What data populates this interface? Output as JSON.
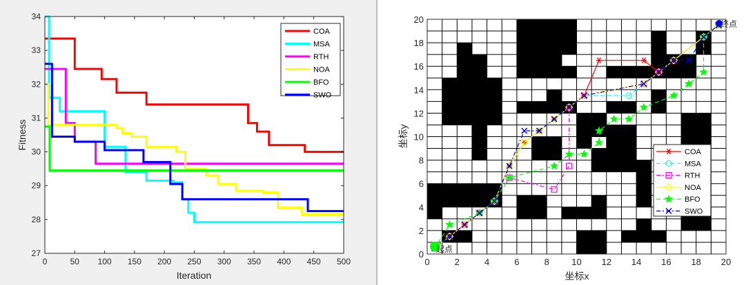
{
  "chart_data": [
    {
      "type": "line",
      "xlabel": "Iteration",
      "ylabel": "Fitness",
      "xlim": [
        0,
        500
      ],
      "ylim": [
        27,
        34
      ],
      "xticks": [
        0,
        50,
        100,
        150,
        200,
        250,
        300,
        350,
        400,
        450,
        500
      ],
      "yticks": [
        27,
        28,
        29,
        30,
        31,
        32,
        33,
        34
      ],
      "legend_position": "top-right",
      "series": [
        {
          "name": "COA",
          "color": "#ff0000",
          "steps": [
            [
              0,
              33.35
            ],
            [
              50,
              32.45
            ],
            [
              95,
              32.15
            ],
            [
              120,
              31.75
            ],
            [
              170,
              31.4
            ],
            [
              340,
              30.85
            ],
            [
              355,
              30.6
            ],
            [
              375,
              30.2
            ],
            [
              435,
              30.0
            ],
            [
              500,
              30.0
            ]
          ]
        },
        {
          "name": "MSA",
          "color": "#00ffff",
          "steps": [
            [
              0,
              34.0
            ],
            [
              7,
              31.6
            ],
            [
              25,
              31.2
            ],
            [
              100,
              30.15
            ],
            [
              135,
              29.4
            ],
            [
              170,
              29.15
            ],
            [
              215,
              29.1
            ],
            [
              230,
              28.6
            ],
            [
              240,
              28.2
            ],
            [
              250,
              27.92
            ],
            [
              500,
              27.92
            ]
          ]
        },
        {
          "name": "RTH",
          "color": "#ff00ff",
          "steps": [
            [
              0,
              32.45
            ],
            [
              35,
              30.85
            ],
            [
              50,
              30.3
            ],
            [
              85,
              29.65
            ],
            [
              500,
              29.65
            ]
          ]
        },
        {
          "name": "NOA",
          "color": "#ffff00",
          "steps": [
            [
              0,
              32.0
            ],
            [
              6,
              30.8
            ],
            [
              120,
              30.7
            ],
            [
              130,
              30.55
            ],
            [
              145,
              30.45
            ],
            [
              170,
              30.15
            ],
            [
              220,
              30.0
            ],
            [
              235,
              29.5
            ],
            [
              270,
              29.3
            ],
            [
              290,
              29.05
            ],
            [
              320,
              28.85
            ],
            [
              365,
              28.8
            ],
            [
              390,
              28.35
            ],
            [
              430,
              28.15
            ],
            [
              500,
              28.15
            ]
          ]
        },
        {
          "name": "BFO",
          "color": "#00ff00",
          "steps": [
            [
              0,
              30.75
            ],
            [
              8,
              29.45
            ],
            [
              500,
              29.45
            ]
          ]
        },
        {
          "name": "SWO",
          "color": "#0000ff",
          "steps": [
            [
              0,
              32.6
            ],
            [
              12,
              30.45
            ],
            [
              50,
              30.3
            ],
            [
              100,
              30.05
            ],
            [
              165,
              29.7
            ],
            [
              210,
              29.05
            ],
            [
              230,
              28.6
            ],
            [
              440,
              28.5
            ],
            [
              440,
              28.25
            ],
            [
              500,
              28.25
            ]
          ]
        }
      ]
    },
    {
      "type": "scatter",
      "xlabel": "坐标x",
      "ylabel": "坐标y",
      "xlim": [
        0,
        20
      ],
      "ylim": [
        0,
        20
      ],
      "xticks": [
        0,
        2,
        4,
        6,
        8,
        10,
        12,
        14,
        16,
        18,
        20
      ],
      "yticks": [
        0,
        2,
        4,
        6,
        8,
        10,
        12,
        14,
        16,
        18,
        20
      ],
      "grid": true,
      "legend_position": "bottom-right",
      "start_label": "起点",
      "end_label": "终点",
      "start": [
        0.5,
        0.5
      ],
      "end": [
        19.5,
        19.5
      ],
      "obstacles": [
        [
          1,
          1
        ],
        [
          2,
          1
        ],
        [
          10,
          0
        ],
        [
          11,
          0
        ],
        [
          10,
          1
        ],
        [
          11,
          1
        ],
        [
          13,
          1
        ],
        [
          14,
          1
        ],
        [
          15,
          1
        ],
        [
          14,
          2
        ],
        [
          0,
          3
        ],
        [
          0,
          4
        ],
        [
          1,
          4
        ],
        [
          2,
          4
        ],
        [
          3,
          4
        ],
        [
          4,
          4
        ],
        [
          0,
          5
        ],
        [
          1,
          5
        ],
        [
          2,
          5
        ],
        [
          3,
          5
        ],
        [
          4,
          5
        ],
        [
          6,
          3
        ],
        [
          7,
          3
        ],
        [
          6,
          4
        ],
        [
          7,
          4
        ],
        [
          9,
          3
        ],
        [
          10,
          3
        ],
        [
          11,
          3
        ],
        [
          11,
          4
        ],
        [
          17,
          2
        ],
        [
          18,
          2
        ],
        [
          17,
          3
        ],
        [
          18,
          3
        ],
        [
          7,
          8
        ],
        [
          8,
          8
        ],
        [
          7,
          9
        ],
        [
          8,
          9
        ],
        [
          11,
          7
        ],
        [
          12,
          7
        ],
        [
          13,
          7
        ],
        [
          11,
          8
        ],
        [
          12,
          8
        ],
        [
          13,
          8
        ],
        [
          12,
          9
        ],
        [
          13,
          9
        ],
        [
          12,
          10
        ],
        [
          13,
          10
        ],
        [
          14,
          4
        ],
        [
          14,
          5
        ],
        [
          14,
          6
        ],
        [
          14,
          7
        ],
        [
          10,
          9
        ],
        [
          10,
          10
        ],
        [
          10,
          11
        ],
        [
          11,
          10
        ],
        [
          3,
          8
        ],
        [
          3,
          9
        ],
        [
          3,
          10
        ],
        [
          1,
          11
        ],
        [
          2,
          11
        ],
        [
          3,
          11
        ],
        [
          4,
          11
        ],
        [
          1,
          12
        ],
        [
          2,
          12
        ],
        [
          3,
          12
        ],
        [
          4,
          12
        ],
        [
          1,
          13
        ],
        [
          2,
          13
        ],
        [
          3,
          13
        ],
        [
          4,
          13
        ],
        [
          1,
          14
        ],
        [
          2,
          14
        ],
        [
          3,
          14
        ],
        [
          4,
          14
        ],
        [
          2,
          15
        ],
        [
          3,
          15
        ],
        [
          2,
          16
        ],
        [
          3,
          16
        ],
        [
          2,
          17
        ],
        [
          6,
          12
        ],
        [
          7,
          12
        ],
        [
          8,
          12
        ],
        [
          8,
          13
        ],
        [
          9,
          12
        ],
        [
          11,
          11
        ],
        [
          12,
          12
        ],
        [
          13,
          12
        ],
        [
          6,
          15
        ],
        [
          7,
          15
        ],
        [
          8,
          15
        ],
        [
          9,
          15
        ],
        [
          6,
          16
        ],
        [
          6,
          17
        ],
        [
          6,
          18
        ],
        [
          6,
          19
        ],
        [
          7,
          16
        ],
        [
          7,
          17
        ],
        [
          7,
          18
        ],
        [
          7,
          19
        ],
        [
          8,
          16
        ],
        [
          8,
          17
        ],
        [
          8,
          18
        ],
        [
          8,
          19
        ],
        [
          9,
          17
        ],
        [
          9,
          18
        ],
        [
          9,
          19
        ],
        [
          12,
          15
        ],
        [
          13,
          15
        ],
        [
          14,
          15
        ],
        [
          15,
          15
        ],
        [
          16,
          15
        ],
        [
          17,
          15
        ],
        [
          15,
          16
        ],
        [
          16,
          16
        ],
        [
          17,
          16
        ],
        [
          15,
          17
        ],
        [
          15,
          18
        ],
        [
          18,
          17
        ],
        [
          18,
          18
        ],
        [
          17,
          9
        ],
        [
          18,
          9
        ],
        [
          17,
          10
        ],
        [
          18,
          10
        ],
        [
          17,
          11
        ],
        [
          18,
          11
        ],
        [
          15,
          12
        ],
        [
          15,
          13
        ]
      ],
      "series": [
        {
          "name": "COA",
          "color": "#ff0000",
          "marker": "star6",
          "dash": "",
          "points": [
            [
              0.5,
              0.5
            ],
            [
              1.5,
              1.5
            ],
            [
              2.5,
              2.5
            ],
            [
              3.5,
              3.5
            ],
            [
              4.5,
              4.5
            ],
            [
              5.5,
              7.5
            ],
            [
              6.5,
              9.5
            ],
            [
              7.5,
              10.5
            ],
            [
              8.5,
              11.5
            ],
            [
              9.5,
              12.5
            ],
            [
              10.5,
              13.5
            ],
            [
              11.5,
              16.5
            ],
            [
              14.5,
              16.5
            ],
            [
              15.5,
              15.5
            ],
            [
              16.5,
              16.5
            ],
            [
              18.5,
              18.5
            ],
            [
              19.5,
              19.5
            ]
          ]
        },
        {
          "name": "MSA",
          "color": "#00ffff",
          "marker": "circle",
          "dash": "6,4",
          "points": [
            [
              0.5,
              0.5
            ],
            [
              1.5,
              1.5
            ],
            [
              2.5,
              2.5
            ],
            [
              3.5,
              3.5
            ],
            [
              4.5,
              4.5
            ],
            [
              5.5,
              7.5
            ],
            [
              6.5,
              9.5
            ],
            [
              7.5,
              10.5
            ],
            [
              8.5,
              11.5
            ],
            [
              9.5,
              12.5
            ],
            [
              10.5,
              13.5
            ],
            [
              13.5,
              13.5
            ],
            [
              14.5,
              14.5
            ],
            [
              15.5,
              15.5
            ],
            [
              16.5,
              16.5
            ],
            [
              18.5,
              18.5
            ],
            [
              19.5,
              19.5
            ]
          ]
        },
        {
          "name": "RTH",
          "color": "#ff00ff",
          "marker": "square",
          "dash": "6,3,2,3",
          "points": [
            [
              0.5,
              0.5
            ],
            [
              1.5,
              1.5
            ],
            [
              2.5,
              2.5
            ],
            [
              3.5,
              3.5
            ],
            [
              4.5,
              4.5
            ],
            [
              5.5,
              6.5
            ],
            [
              8.5,
              5.5
            ],
            [
              9.5,
              7.5
            ],
            [
              9.5,
              12.5
            ],
            [
              10.5,
              13.5
            ],
            [
              14.5,
              14.5
            ],
            [
              15.5,
              15.5
            ],
            [
              16.5,
              16.5
            ],
            [
              18.5,
              18.5
            ],
            [
              19.5,
              19.5
            ]
          ]
        },
        {
          "name": "NOA",
          "color": "#ffff00",
          "marker": "diamond",
          "dash": "",
          "points": [
            [
              0.5,
              0.5
            ],
            [
              1.5,
              1.5
            ],
            [
              2.5,
              2.5
            ],
            [
              3.5,
              3.5
            ],
            [
              4.5,
              4.5
            ],
            [
              5.5,
              7.5
            ],
            [
              6.5,
              9.5
            ],
            [
              7.5,
              10.5
            ],
            [
              8.5,
              11.5
            ],
            [
              9.5,
              12.5
            ],
            [
              10.5,
              13.5
            ],
            [
              14.5,
              14.5
            ],
            [
              15.5,
              15.5
            ],
            [
              16.5,
              16.5
            ],
            [
              18.5,
              18.5
            ],
            [
              19.5,
              19.5
            ]
          ]
        },
        {
          "name": "BFO",
          "color": "#00ff00",
          "marker": "pentagram",
          "dash": "6,4",
          "points": [
            [
              0.5,
              0.5
            ],
            [
              1.5,
              2.5
            ],
            [
              3.5,
              3.5
            ],
            [
              4.5,
              4.5
            ],
            [
              5.5,
              6.5
            ],
            [
              8.5,
              7.5
            ],
            [
              9.5,
              8.5
            ],
            [
              10.5,
              8.5
            ],
            [
              11.5,
              9.5
            ],
            [
              11.5,
              10.5
            ],
            [
              12.5,
              11.5
            ],
            [
              13.5,
              11.5
            ],
            [
              14.5,
              12.5
            ],
            [
              16.5,
              13.5
            ],
            [
              17.5,
              14.5
            ],
            [
              18.5,
              15.5
            ],
            [
              18.5,
              18.5
            ],
            [
              19.5,
              19.5
            ]
          ]
        },
        {
          "name": "SWO",
          "color": "#0000cc",
          "marker": "x",
          "dash": "6,3,2,3",
          "points": [
            [
              0.5,
              0.5
            ],
            [
              1.5,
              1.5
            ],
            [
              2.5,
              2.5
            ],
            [
              3.5,
              3.5
            ],
            [
              4.5,
              4.5
            ],
            [
              5.5,
              7.5
            ],
            [
              6.5,
              10.5
            ],
            [
              7.5,
              10.5
            ],
            [
              8.5,
              11.5
            ],
            [
              9.5,
              12.5
            ],
            [
              10.5,
              13.5
            ],
            [
              14.5,
              14.5
            ],
            [
              15.5,
              15.5
            ],
            [
              16.5,
              16.5
            ],
            [
              17.5,
              16.5
            ],
            [
              18.5,
              18.5
            ],
            [
              19.5,
              19.5
            ]
          ]
        }
      ]
    }
  ]
}
